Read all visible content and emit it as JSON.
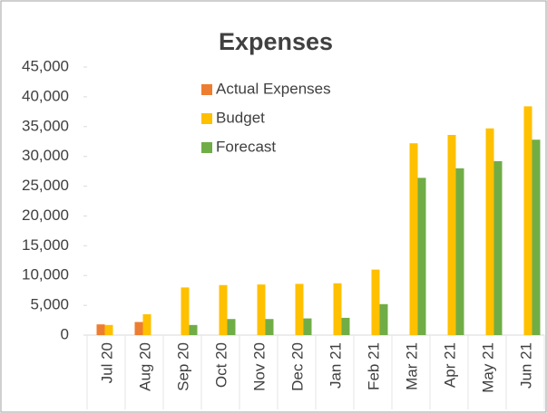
{
  "chart_data": {
    "type": "bar",
    "title": "Expenses",
    "categories": [
      "Jul 20",
      "Aug 20",
      "Sep 20",
      "Oct 20",
      "Nov 20",
      "Dec 20",
      "Jan 21",
      "Feb 21",
      "Mar 21",
      "Apr 21",
      "May 21",
      "Jun 21"
    ],
    "series": [
      {
        "name": "Actual Expenses",
        "color": "#ed7d31",
        "values": [
          1800,
          2200,
          null,
          null,
          null,
          null,
          null,
          null,
          null,
          null,
          null,
          null
        ]
      },
      {
        "name": "Budget",
        "color": "#ffc000",
        "values": [
          1700,
          3500,
          8000,
          8400,
          8500,
          8600,
          8700,
          11000,
          32200,
          33600,
          34700,
          38400
        ]
      },
      {
        "name": "Forecast",
        "color": "#70ad47",
        "values": [
          null,
          null,
          1700,
          2700,
          2700,
          2800,
          2900,
          5200,
          26400,
          28000,
          29200,
          32800
        ]
      }
    ],
    "ylim": [
      0,
      45000
    ],
    "yticks": [
      0,
      {
        "value": 5000,
        "label": "5,000"
      },
      {
        "value": 10000,
        "label": "10,000"
      },
      {
        "value": 15000,
        "label": "15,000"
      },
      {
        "value": 20000,
        "label": "20,000"
      },
      {
        "value": 25000,
        "label": "25,000"
      },
      {
        "value": 30000,
        "label": "30,000"
      },
      {
        "value": 35000,
        "label": "35,000"
      },
      {
        "value": 40000,
        "label": "40,000"
      },
      {
        "value": 45000,
        "label": "45,000"
      }
    ],
    "legend": "top-left"
  }
}
